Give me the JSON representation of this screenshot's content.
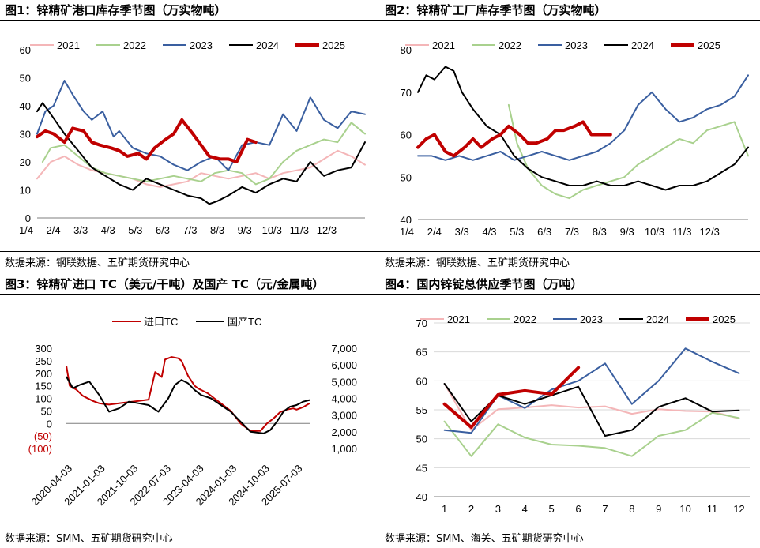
{
  "colors": {
    "c2021": "#f4b6b8",
    "c2022": "#a9d18e",
    "c2023": "#3a5fa0",
    "c2024": "#000000",
    "c2025": "#c00000",
    "red": "#c00000",
    "black": "#000000",
    "grid": "#d9d9d9"
  },
  "chart_data": [
    {
      "id": "p1",
      "type": "line",
      "title": "图1：锌精矿港口库存季节图（万实物吨）",
      "source": "数据来源：钢联数据、五矿期货研究中心",
      "ylim": [
        0,
        60
      ],
      "yticks": [
        "0",
        "10",
        "20",
        "30",
        "40",
        "50",
        "60"
      ],
      "x_range": [
        0,
        12
      ],
      "xticks": [
        "1/4",
        "2/4",
        "3/3",
        "4/3",
        "5/3",
        "6/3",
        "7/3",
        "8/3",
        "9/3",
        "10/3",
        "11/3",
        "12/3"
      ],
      "series": [
        {
          "name": "2021",
          "color": "#f4b6b8",
          "width": 2,
          "x": [
            0,
            0.5,
            1,
            1.5,
            2,
            2.5,
            3,
            3.5,
            4,
            4.5,
            5,
            5.5,
            6,
            6.5,
            7,
            7.5,
            8,
            8.5,
            9,
            9.5,
            10,
            10.5,
            11,
            11.5,
            12
          ],
          "values": [
            14,
            20,
            22,
            19,
            17,
            16,
            15,
            14,
            12,
            11,
            12,
            13,
            16,
            15,
            14,
            15,
            16,
            14,
            16,
            17,
            18,
            21,
            24,
            22,
            19
          ]
        },
        {
          "name": "2022",
          "color": "#a9d18e",
          "width": 2,
          "x": [
            0.2,
            0.5,
            1,
            1.5,
            2,
            2.5,
            3,
            3.5,
            4,
            4.5,
            5,
            5.5,
            6,
            6.5,
            7,
            7.5,
            8,
            8.5,
            9,
            9.5,
            10,
            10.5,
            11,
            11.5,
            12
          ],
          "values": [
            20,
            25,
            26,
            22,
            18,
            16,
            15,
            14,
            13,
            14,
            15,
            14,
            13,
            16,
            17,
            16,
            12,
            14,
            20,
            24,
            26,
            28,
            27,
            34,
            30
          ]
        },
        {
          "name": "2023",
          "color": "#3a5fa0",
          "width": 2,
          "x": [
            0,
            0.3,
            0.6,
            1,
            1.3,
            1.7,
            2,
            2.4,
            2.8,
            3,
            3.5,
            4,
            4.5,
            5,
            5.5,
            6,
            6.5,
            7,
            7.5,
            8,
            8.5,
            9,
            9.5,
            10,
            10.5,
            11,
            11.5,
            12
          ],
          "values": [
            30,
            38,
            40,
            49,
            44,
            38,
            35,
            38,
            29,
            31,
            25,
            23,
            22,
            19,
            17,
            20,
            22,
            17,
            26,
            27,
            26,
            37,
            31,
            43,
            35,
            32,
            38,
            37
          ]
        },
        {
          "name": "2024",
          "color": "#000000",
          "width": 2,
          "x": [
            0,
            0.2,
            0.5,
            1,
            1.5,
            2,
            2.5,
            3,
            3.5,
            4,
            4.5,
            5,
            5.5,
            6,
            6.3,
            6.6,
            7,
            7.5,
            8,
            8.5,
            9,
            9.5,
            10,
            10.5,
            11,
            11.5,
            12
          ],
          "values": [
            38,
            41,
            37,
            30,
            24,
            18,
            15,
            12,
            10,
            14,
            12,
            10,
            8,
            7,
            5,
            6,
            8,
            11,
            9,
            12,
            14,
            13,
            20,
            15,
            17,
            18,
            27
          ]
        },
        {
          "name": "2025",
          "color": "#c00000",
          "width": 4,
          "x": [
            0,
            0.3,
            0.6,
            1,
            1.3,
            1.7,
            2,
            2.3,
            2.7,
            3,
            3.3,
            3.7,
            4,
            4.3,
            4.7,
            5,
            5.3,
            5.7,
            6,
            6.3,
            6.7,
            7,
            7.3,
            7.7,
            8
          ],
          "values": [
            29,
            31,
            30,
            27,
            32,
            31,
            27,
            26,
            25,
            24,
            22,
            23,
            21,
            25,
            28,
            30,
            35,
            30,
            26,
            22,
            21,
            21,
            20,
            28,
            27
          ]
        }
      ]
    },
    {
      "id": "p2",
      "type": "line",
      "title": "图2：锌精矿工厂库存季节图（万实物吨）",
      "source": "数据来源：钢联数据、五矿期货研究中心",
      "ylim": [
        40,
        80
      ],
      "yticks": [
        "40",
        "50",
        "60",
        "70",
        "80"
      ],
      "x_range": [
        0,
        12
      ],
      "xticks": [
        "1/4",
        "2/4",
        "3/3",
        "4/3",
        "5/3",
        "6/3",
        "7/3",
        "8/3",
        "9/3",
        "10/3",
        "11/3",
        "12/3"
      ],
      "series": [
        {
          "name": "2021",
          "color": "#f4b6b8",
          "width": 2,
          "x": [],
          "values": []
        },
        {
          "name": "2022",
          "color": "#a9d18e",
          "width": 2,
          "x": [
            3.3,
            3.6,
            4,
            4.5,
            5,
            5.5,
            6,
            6.5,
            7,
            7.5,
            8,
            8.5,
            9,
            9.5,
            10,
            10.5,
            11,
            11.5,
            12
          ],
          "values": [
            67,
            58,
            52,
            48,
            46,
            45,
            47,
            48,
            49,
            50,
            53,
            55,
            57,
            59,
            58,
            61,
            62,
            63,
            55
          ]
        },
        {
          "name": "2023",
          "color": "#3a5fa0",
          "width": 2,
          "x": [
            0,
            0.5,
            1,
            1.5,
            2,
            2.5,
            3,
            3.5,
            4,
            4.5,
            5,
            5.5,
            6,
            6.5,
            7,
            7.5,
            8,
            8.5,
            9,
            9.5,
            10,
            10.5,
            11,
            11.5,
            12
          ],
          "values": [
            55,
            55,
            54,
            55,
            54,
            55,
            56,
            54,
            55,
            56,
            55,
            54,
            55,
            56,
            58,
            61,
            67,
            70,
            66,
            63,
            64,
            66,
            67,
            69,
            74
          ]
        },
        {
          "name": "2024",
          "color": "#000000",
          "width": 2,
          "x": [
            0,
            0.3,
            0.6,
            1,
            1.3,
            1.6,
            2,
            2.5,
            3,
            3.5,
            4,
            4.5,
            5,
            5.5,
            6,
            6.5,
            7,
            7.5,
            8,
            8.5,
            9,
            9.5,
            10,
            10.5,
            11,
            11.5,
            12
          ],
          "values": [
            70,
            74,
            73,
            76,
            75,
            70,
            66,
            62,
            60,
            55,
            52,
            50,
            49,
            48,
            48,
            49,
            48,
            48,
            49,
            48,
            47,
            48,
            48,
            49,
            51,
            53,
            57
          ]
        },
        {
          "name": "2025",
          "color": "#c00000",
          "width": 4,
          "x": [
            0,
            0.3,
            0.6,
            1,
            1.3,
            1.7,
            2,
            2.3,
            2.7,
            3,
            3.3,
            3.7,
            4,
            4.3,
            4.7,
            5,
            5.3,
            5.7,
            6,
            6.3,
            6.7,
            7
          ],
          "values": [
            57,
            59,
            60,
            56,
            55,
            57,
            59,
            57,
            59,
            60,
            62,
            60,
            58,
            58,
            59,
            61,
            61,
            62,
            63,
            60,
            60,
            60
          ]
        }
      ]
    },
    {
      "id": "p3",
      "type": "line",
      "title": "图3：锌精矿进口 TC（美元/干吨）及国产 TC（元/金属吨）",
      "source": "数据来源：SMM、五矿期货研究中心",
      "left_axis": {
        "ylim": [
          -100,
          300
        ],
        "yticks": [
          "300",
          "250",
          "200",
          "150",
          "100",
          "50",
          "0",
          "(50)",
          "(100)"
        ],
        "neg_color": "#c00000"
      },
      "right_axis": {
        "ylim": [
          1000,
          7000
        ],
        "yticks": [
          "7,000",
          "6,000",
          "5,000",
          "4,000",
          "3,000",
          "2,000",
          "1,000"
        ]
      },
      "xticks": [
        "2020-04-03",
        "2021-01-03",
        "2021-10-03",
        "2022-07-03",
        "2023-04-03",
        "2024-01-03",
        "2024-10-03",
        "2025-07-03"
      ],
      "series": [
        {
          "name": "进口TC",
          "axis": "left",
          "color": "#c00000",
          "width": 2,
          "t": [
            0,
            0.1,
            0.3,
            0.5,
            0.8,
            1,
            1.3,
            1.6,
            1.9,
            2.2,
            2.5,
            2.7,
            2.9,
            3,
            3.2,
            3.4,
            3.5,
            3.7,
            3.9,
            4,
            4.3,
            4.5,
            4.7,
            5,
            5.3,
            5.6,
            5.9,
            6.1,
            6.3,
            6.5,
            6.7,
            6.9,
            7,
            7.2,
            7.4
          ],
          "values": [
            230,
            150,
            135,
            110,
            90,
            80,
            75,
            80,
            85,
            90,
            95,
            205,
            185,
            255,
            265,
            260,
            250,
            190,
            150,
            140,
            120,
            100,
            80,
            50,
            0,
            -30,
            -30,
            0,
            20,
            45,
            55,
            60,
            55,
            65,
            80
          ]
        },
        {
          "name": "国产TC",
          "axis": "right",
          "color": "#000000",
          "width": 2,
          "t": [
            0,
            0.2,
            0.4,
            0.7,
            1,
            1.3,
            1.6,
            1.9,
            2.2,
            2.5,
            2.8,
            3.1,
            3.3,
            3.5,
            3.7,
            3.9,
            4.1,
            4.4,
            4.7,
            5,
            5.3,
            5.6,
            6,
            6.2,
            6.4,
            6.6,
            6.8,
            7,
            7.2,
            7.4
          ],
          "values": [
            5300,
            4600,
            4800,
            5000,
            4200,
            3200,
            3400,
            3800,
            3700,
            3600,
            3200,
            4000,
            4800,
            5100,
            4900,
            4500,
            4200,
            4000,
            3600,
            3200,
            2600,
            2000,
            1900,
            2100,
            2600,
            3200,
            3500,
            3600,
            3800,
            3900
          ]
        }
      ]
    },
    {
      "id": "p4",
      "type": "line",
      "title": "图4：国内锌锭总供应季节图（万吨）",
      "source": "数据来源：SMM、海关、五矿期货研究中心",
      "ylim": [
        40,
        70
      ],
      "yticks": [
        "40",
        "45",
        "50",
        "55",
        "60",
        "65",
        "70"
      ],
      "x_range": [
        0.6,
        12.4
      ],
      "xticks": [
        "1",
        "2",
        "3",
        "4",
        "5",
        "6",
        "7",
        "8",
        "9",
        "10",
        "11",
        "12"
      ],
      "series": [
        {
          "name": "2021",
          "color": "#f4b6b8",
          "width": 2,
          "x": [
            1,
            2,
            3,
            4,
            5,
            6,
            7,
            8,
            9,
            10,
            11,
            12
          ],
          "values": [
            59.5,
            51.5,
            55.1,
            55.4,
            55.8,
            55.4,
            55.6,
            54.3,
            55.1,
            54.8,
            54.7,
            53.5
          ]
        },
        {
          "name": "2022",
          "color": "#a9d18e",
          "width": 2,
          "x": [
            1,
            2,
            3,
            4,
            5,
            6,
            7,
            8,
            9,
            10,
            11,
            12
          ],
          "values": [
            53,
            47,
            52.5,
            50.2,
            49,
            48.8,
            48.4,
            47,
            50.5,
            51.5,
            54.5,
            53.6
          ]
        },
        {
          "name": "2023",
          "color": "#3a5fa0",
          "width": 2,
          "x": [
            1,
            2,
            3,
            4,
            5,
            6,
            7,
            8,
            9,
            10,
            11,
            12
          ],
          "values": [
            51.5,
            51,
            57.5,
            55.3,
            58.5,
            60,
            63,
            56,
            60,
            65.6,
            63.3,
            61.3
          ]
        },
        {
          "name": "2024",
          "color": "#000000",
          "width": 2,
          "x": [
            1,
            2,
            3,
            4,
            5,
            6,
            7,
            8,
            9,
            10,
            11,
            12
          ],
          "values": [
            59.5,
            53,
            57.5,
            56,
            57.5,
            59,
            50.5,
            51.5,
            55.5,
            57,
            54.7,
            54.9
          ]
        },
        {
          "name": "2025",
          "color": "#c00000",
          "width": 4,
          "x": [
            1,
            2,
            3,
            4,
            5,
            6
          ],
          "values": [
            56,
            52,
            57.6,
            58.3,
            57.7,
            62.3
          ]
        }
      ]
    }
  ]
}
